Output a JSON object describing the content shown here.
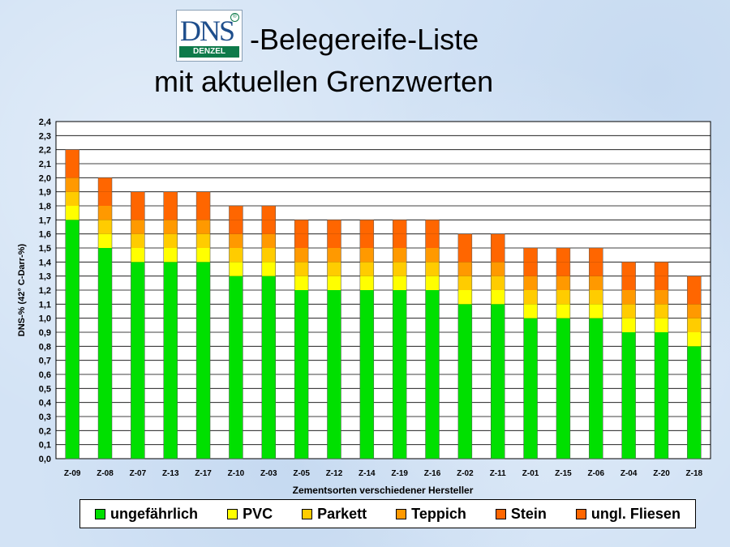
{
  "logo": {
    "text": "DNS",
    "subtext": "DENZEL",
    "mark": "®"
  },
  "title_line1": "-Belegereife-Liste",
  "title_line2": "mit aktuellen Grenzwerten",
  "colors": {
    "ungefaehrlich": "#00e000",
    "pvc": "#ffff00",
    "parkett": "#ffcc00",
    "teppich": "#ff9900",
    "stein": "#ff6600",
    "fliesen": "#ff6600"
  },
  "chart_data": {
    "type": "bar",
    "stacked": true,
    "xlabel": "Zementsorten verschiedener Hersteller",
    "ylabel": "DNS-% (42° C-Darr-%)",
    "ylim": [
      0,
      2.4
    ],
    "ytick_step": 0.1,
    "grid": true,
    "legend_position": "bottom",
    "categories": [
      "Z-09",
      "Z-08",
      "Z-07",
      "Z-13",
      "Z-17",
      "Z-10",
      "Z-03",
      "Z-05",
      "Z-12",
      "Z-14",
      "Z-19",
      "Z-16",
      "Z-02",
      "Z-11",
      "Z-01",
      "Z-15",
      "Z-06",
      "Z-04",
      "Z-20",
      "Z-18"
    ],
    "series": [
      {
        "name": "ungefährlich",
        "values": [
          1.7,
          1.5,
          1.4,
          1.4,
          1.4,
          1.3,
          1.3,
          1.2,
          1.2,
          1.2,
          1.2,
          1.2,
          1.1,
          1.1,
          1.0,
          1.0,
          1.0,
          0.9,
          0.9,
          0.8
        ]
      },
      {
        "name": "PVC",
        "values": [
          0.1,
          0.1,
          0.1,
          0.1,
          0.1,
          0.1,
          0.1,
          0.1,
          0.1,
          0.1,
          0.1,
          0.1,
          0.1,
          0.1,
          0.1,
          0.1,
          0.1,
          0.1,
          0.1,
          0.1
        ]
      },
      {
        "name": "Parkett",
        "values": [
          0.1,
          0.1,
          0.1,
          0.1,
          0.1,
          0.1,
          0.1,
          0.1,
          0.1,
          0.1,
          0.1,
          0.1,
          0.1,
          0.1,
          0.1,
          0.1,
          0.1,
          0.1,
          0.1,
          0.1
        ]
      },
      {
        "name": "Teppich",
        "values": [
          0.1,
          0.1,
          0.1,
          0.1,
          0.1,
          0.1,
          0.1,
          0.1,
          0.1,
          0.1,
          0.1,
          0.1,
          0.1,
          0.1,
          0.1,
          0.1,
          0.1,
          0.1,
          0.1,
          0.1
        ]
      },
      {
        "name": "Stein",
        "values": [
          0.1,
          0.1,
          0.1,
          0.1,
          0.1,
          0.1,
          0.1,
          0.1,
          0.1,
          0.1,
          0.1,
          0.1,
          0.1,
          0.1,
          0.1,
          0.1,
          0.1,
          0.1,
          0.1,
          0.1
        ]
      },
      {
        "name": "ungl. Fliesen",
        "values": [
          0.1,
          0.1,
          0.1,
          0.1,
          0.1,
          0.1,
          0.1,
          0.1,
          0.1,
          0.1,
          0.1,
          0.1,
          0.1,
          0.1,
          0.1,
          0.1,
          0.1,
          0.1,
          0.1,
          0.1
        ]
      }
    ],
    "totals": [
      2.2,
      2.0,
      1.9,
      1.9,
      1.9,
      1.8,
      1.8,
      1.7,
      1.7,
      1.7,
      1.7,
      1.7,
      1.6,
      1.6,
      1.5,
      1.5,
      1.5,
      1.4,
      1.4,
      1.3
    ]
  }
}
